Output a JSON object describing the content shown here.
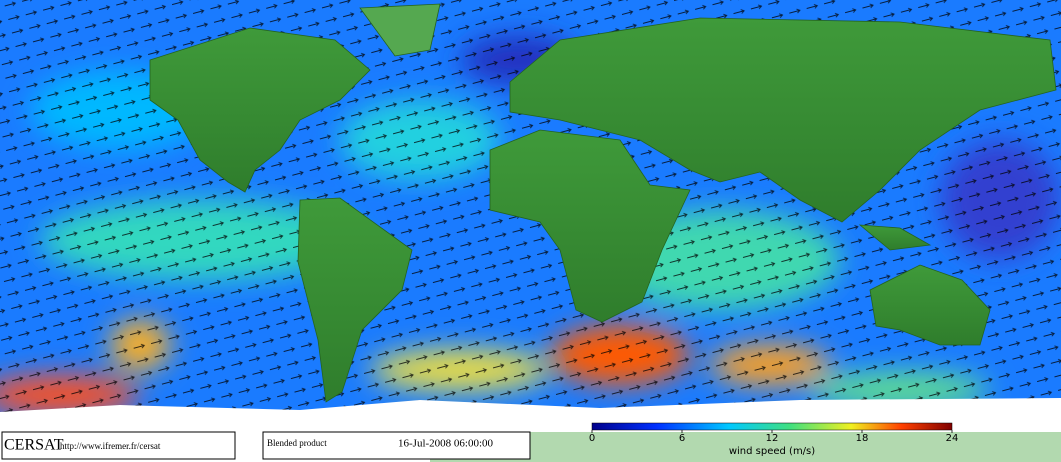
{
  "footer": {
    "org": "CERSAT",
    "url": "http://www.ifremer.fr/cersat",
    "product": "Blended product",
    "date": "16-Jul-2008 06:00:00"
  },
  "colorbar": {
    "title": "wind speed (m/s)",
    "range": [
      0,
      24
    ],
    "ticks": [
      0,
      6,
      12,
      18,
      24
    ]
  }
}
